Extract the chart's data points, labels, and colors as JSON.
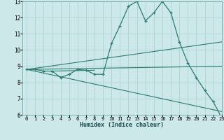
{
  "xlabel": "Humidex (Indice chaleur)",
  "ylabel": "",
  "bg_color": "#cce8e8",
  "grid_color": "#aed4d4",
  "line_color": "#2b7b72",
  "xlim": [
    -0.5,
    23
  ],
  "ylim": [
    6,
    13
  ],
  "xticks": [
    0,
    1,
    2,
    3,
    4,
    5,
    6,
    7,
    8,
    9,
    10,
    11,
    12,
    13,
    14,
    15,
    16,
    17,
    18,
    19,
    20,
    21,
    22,
    23
  ],
  "yticks": [
    6,
    7,
    8,
    9,
    10,
    11,
    12,
    13
  ],
  "curve1_x": [
    0,
    1,
    2,
    3,
    4,
    5,
    6,
    7,
    8,
    9,
    10,
    11,
    12,
    13,
    14,
    15,
    16,
    17,
    18,
    19,
    20,
    21,
    22,
    23
  ],
  "curve1_y": [
    8.8,
    8.8,
    8.7,
    8.7,
    8.3,
    8.5,
    8.8,
    8.75,
    8.5,
    8.5,
    10.4,
    11.5,
    12.7,
    13.0,
    11.8,
    12.3,
    13.0,
    12.3,
    10.5,
    9.2,
    8.3,
    7.5,
    6.8,
    5.8
  ],
  "line1_x": [
    0,
    23
  ],
  "line1_y": [
    8.8,
    9.0
  ],
  "line2_x": [
    0,
    23
  ],
  "line2_y": [
    8.8,
    10.5
  ],
  "line3_x": [
    0,
    23
  ],
  "line3_y": [
    8.8,
    6.2
  ],
  "line4_x": [
    3,
    8
  ],
  "line4_y": [
    8.7,
    8.75
  ]
}
